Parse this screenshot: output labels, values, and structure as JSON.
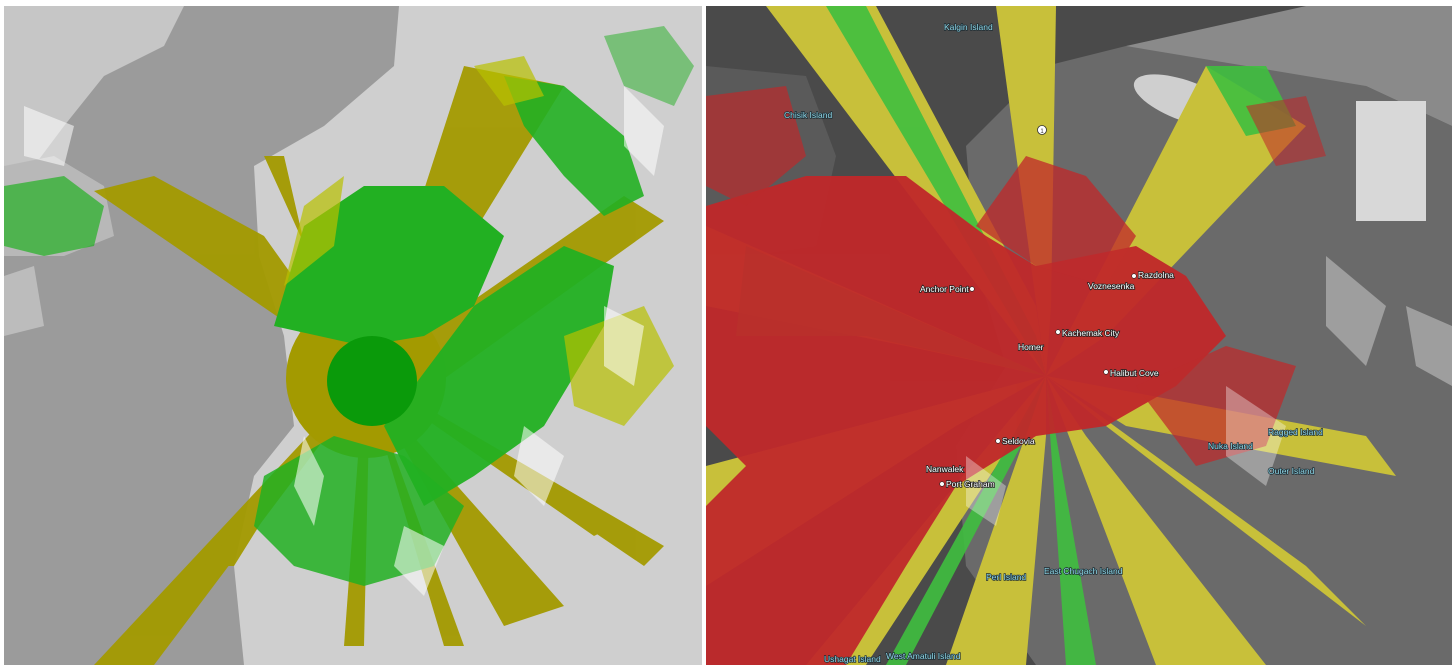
{
  "colors": {
    "left_background": "#9b9b9b",
    "left_land_shade": "#cfcfcf",
    "olive_coverage": "#a39a00",
    "green_coverage": "#22b022",
    "dark_green_center": "#0a9a0a",
    "right_background": "#3a3a3a",
    "red_coverage": "#c0282a",
    "yellow_coverage": "#c8c03a",
    "light_green_coverage": "#3fbf3f"
  },
  "left_map": {
    "legend": []
  },
  "right_map": {
    "towns": {
      "anchor_point": "Anchor Point",
      "homer": "Homer",
      "kachemak_city": "Kachemak City",
      "voznesenka": "Voznesenka",
      "razdolna": "Razdolna",
      "halibut_cove": "Halibut Cove",
      "seldovia": "Seldovia",
      "nanwalek": "Nanwalek",
      "port_graham": "Port Graham"
    },
    "islands": {
      "kalgin": "Kalgin Island",
      "chisik": "Chisik Island",
      "ragged": "Ragged Island",
      "nuka": "Nuka Island",
      "outer": "Outer Island",
      "perl": "Perl Island",
      "east_chugach": "East Chugach Island",
      "ushagat": "Ushagat Island",
      "west_amatuli": "West Amatuli Island"
    },
    "road_marker": "1"
  }
}
